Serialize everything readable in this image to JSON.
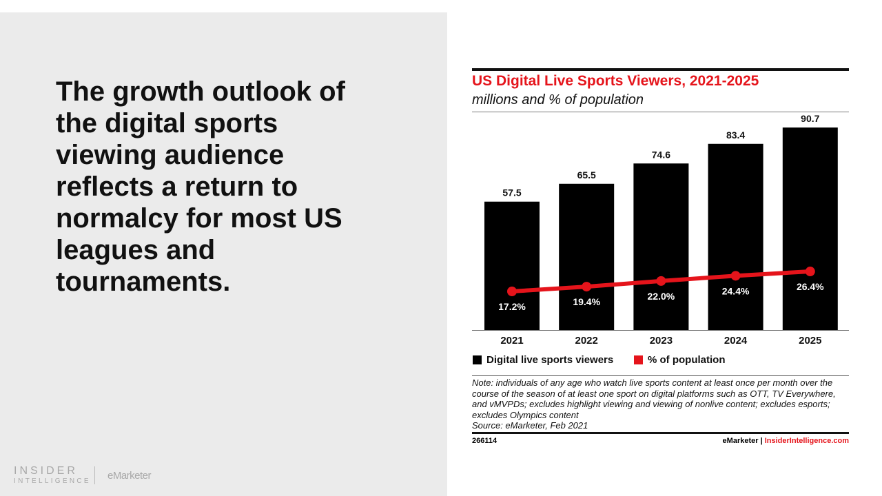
{
  "headline": "The growth outlook of the digital sports viewing audience reflects a return to normalcy for most US leagues and tournaments.",
  "logos": {
    "insider_line1": "INSIDER",
    "insider_line2": "INTELLIGENCE",
    "emarketer": "eMarketer"
  },
  "colors": {
    "bar": "#000000",
    "line": "#e5141b",
    "title": "#e5141b",
    "left_panel": "#ebebeb"
  },
  "chart_data": {
    "type": "bar+line",
    "title": "US Digital Live Sports Viewers, 2021-2025",
    "subtitle": "millions and % of population",
    "categories": [
      "2021",
      "2022",
      "2023",
      "2024",
      "2025"
    ],
    "series": [
      {
        "name": "Digital live sports viewers",
        "type": "bar",
        "values": [
          57.5,
          65.5,
          74.6,
          83.4,
          90.7
        ],
        "labels": [
          "57.5",
          "65.5",
          "74.6",
          "83.4",
          "90.7"
        ]
      },
      {
        "name": "% of population",
        "type": "line",
        "values": [
          17.2,
          19.4,
          22.0,
          24.4,
          26.4
        ],
        "labels": [
          "17.2%",
          "19.4%",
          "22.0%",
          "24.4%",
          "26.4%"
        ]
      }
    ],
    "grid": false,
    "legend": "bottom-left",
    "note": "Note: individuals of any age who watch live sports content at least once per month over the course of the season of at least one sport on digital platforms such as OTT, TV Everywhere, and vMVPDs; excludes highlight viewing and viewing of nonlive content; excludes esports; excludes Olympics content",
    "source": "Source: eMarketer, Feb 2021",
    "chart_id": "266114",
    "credit_a": "eMarketer",
    "credit_sep": "|",
    "credit_b": "InsiderIntelligence.com"
  }
}
